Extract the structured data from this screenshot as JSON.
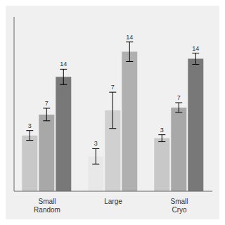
{
  "chart_data": {
    "type": "bar",
    "categories": [
      "Small\nRandom",
      "Large",
      "Small\nCryo"
    ],
    "series": [
      {
        "name": "3",
        "values": [
          0.4,
          0.25,
          0.38
        ],
        "errors": [
          0.035,
          0.055,
          0.025
        ],
        "colors": [
          "#c8c8c8",
          "#e8e8e8",
          "#c8c8c8"
        ]
      },
      {
        "name": "7",
        "values": [
          0.55,
          0.58,
          0.6
        ],
        "errors": [
          0.045,
          0.13,
          0.035
        ],
        "colors": [
          "#a8a8a8",
          "#d0d0d0",
          "#a8a8a8"
        ]
      },
      {
        "name": "14",
        "values": [
          0.82,
          1.0,
          0.95
        ],
        "errors": [
          0.055,
          0.07,
          0.04
        ],
        "colors": [
          "#787878",
          "#b0b0b0",
          "#787878"
        ]
      }
    ],
    "ylim": [
      0,
      1.25
    ],
    "tick_labels": "x",
    "grid": false
  }
}
